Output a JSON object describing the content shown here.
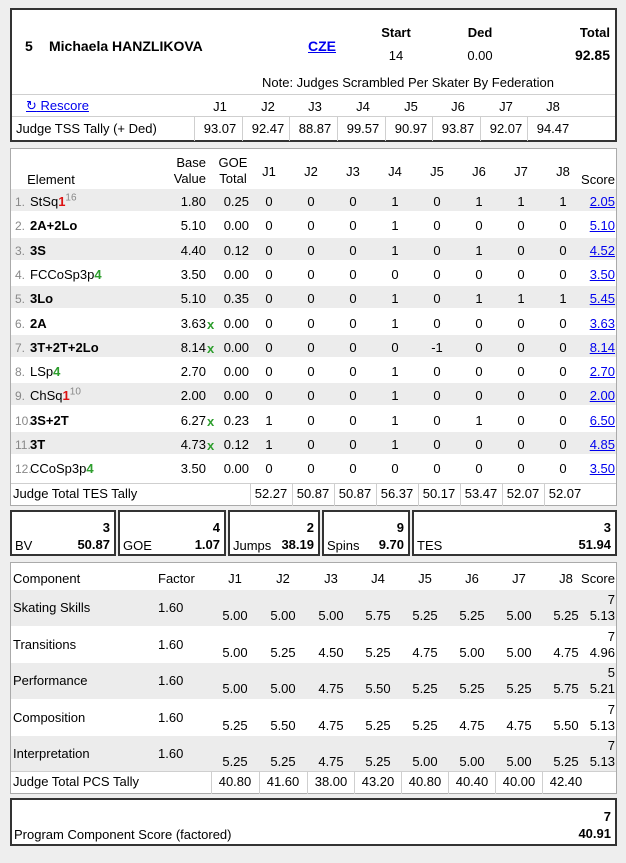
{
  "header": {
    "rank": "5",
    "skater_name": "Michaela HANZLIKOVA",
    "nation": "CZE",
    "start_label": "Start",
    "start_value": "14",
    "ded_label": "Ded",
    "ded_value": "0.00",
    "total_label": "Total",
    "total_value": "92.85",
    "note": "Note: Judges Scrambled Per Skater By Federation",
    "rescore_label": "Rescore",
    "rescore_icon": "refresh-icon",
    "judges": [
      "J1",
      "J2",
      "J3",
      "J4",
      "J5",
      "J6",
      "J7",
      "J8"
    ],
    "tss_label": "Judge TSS Tally (+ Ded)",
    "tss_values": [
      "93.07",
      "92.47",
      "88.87",
      "99.57",
      "90.97",
      "93.87",
      "92.07",
      "94.47"
    ]
  },
  "elements": {
    "headers": {
      "element": "Element",
      "base_value_1": "Base",
      "base_value_2": "Value",
      "goe_total_1": "GOE",
      "goe_total_2": "Total",
      "judges": [
        "J1",
        "J2",
        "J3",
        "J4",
        "J5",
        "J6",
        "J7",
        "J8"
      ],
      "score": "Score"
    },
    "rows": [
      {
        "num": "1.",
        "name": "StSq",
        "level": "1",
        "sup": "16",
        "bold": false,
        "base": "1.80",
        "x": "",
        "goe": "0.25",
        "judges": [
          "0",
          "0",
          "0",
          "1",
          "0",
          "1",
          "1",
          "1"
        ],
        "score": "2.05"
      },
      {
        "num": "2.",
        "name": "2A+2Lo",
        "level": "",
        "sup": "",
        "bold": true,
        "base": "5.10",
        "x": "",
        "goe": "0.00",
        "judges": [
          "0",
          "0",
          "0",
          "1",
          "0",
          "0",
          "0",
          "0"
        ],
        "score": "5.10"
      },
      {
        "num": "3.",
        "name": "3S",
        "level": "",
        "sup": "",
        "bold": true,
        "base": "4.40",
        "x": "",
        "goe": "0.12",
        "judges": [
          "0",
          "0",
          "0",
          "1",
          "0",
          "1",
          "0",
          "0"
        ],
        "score": "4.52"
      },
      {
        "num": "4.",
        "name": "FCCoSp3p",
        "level": "4",
        "sup": "",
        "bold": false,
        "base": "3.50",
        "x": "",
        "goe": "0.00",
        "judges": [
          "0",
          "0",
          "0",
          "0",
          "0",
          "0",
          "0",
          "0"
        ],
        "score": "3.50"
      },
      {
        "num": "5.",
        "name": "3Lo",
        "level": "",
        "sup": "",
        "bold": true,
        "base": "5.10",
        "x": "",
        "goe": "0.35",
        "judges": [
          "0",
          "0",
          "0",
          "1",
          "0",
          "1",
          "1",
          "1"
        ],
        "score": "5.45"
      },
      {
        "num": "6.",
        "name": "2A",
        "level": "",
        "sup": "",
        "bold": true,
        "base": "3.63",
        "x": "x",
        "goe": "0.00",
        "judges": [
          "0",
          "0",
          "0",
          "1",
          "0",
          "0",
          "0",
          "0"
        ],
        "score": "3.63"
      },
      {
        "num": "7.",
        "name": "3T+2T+2Lo",
        "level": "",
        "sup": "",
        "bold": true,
        "base": "8.14",
        "x": "x",
        "goe": "0.00",
        "judges": [
          "0",
          "0",
          "0",
          "0",
          "-1",
          "0",
          "0",
          "0"
        ],
        "score": "8.14"
      },
      {
        "num": "8.",
        "name": "LSp",
        "level": "4",
        "sup": "",
        "bold": false,
        "base": "2.70",
        "x": "",
        "goe": "0.00",
        "judges": [
          "0",
          "0",
          "0",
          "1",
          "0",
          "0",
          "0",
          "0"
        ],
        "score": "2.70"
      },
      {
        "num": "9.",
        "name": "ChSq",
        "level": "1",
        "sup": "10",
        "bold": false,
        "base": "2.00",
        "x": "",
        "goe": "0.00",
        "judges": [
          "0",
          "0",
          "0",
          "1",
          "0",
          "0",
          "0",
          "0"
        ],
        "score": "2.00"
      },
      {
        "num": "10.",
        "name": "3S+2T",
        "level": "",
        "sup": "",
        "bold": true,
        "base": "6.27",
        "x": "x",
        "goe": "0.23",
        "judges": [
          "1",
          "0",
          "0",
          "1",
          "0",
          "1",
          "0",
          "0"
        ],
        "score": "6.50"
      },
      {
        "num": "11.",
        "name": "3T",
        "level": "",
        "sup": "",
        "bold": true,
        "base": "4.73",
        "x": "x",
        "goe": "0.12",
        "judges": [
          "1",
          "0",
          "0",
          "1",
          "0",
          "0",
          "0",
          "0"
        ],
        "score": "4.85"
      },
      {
        "num": "12.",
        "name": "CCoSp3p",
        "level": "4",
        "sup": "",
        "bold": false,
        "base": "3.50",
        "x": "",
        "goe": "0.00",
        "judges": [
          "0",
          "0",
          "0",
          "0",
          "0",
          "0",
          "0",
          "0"
        ],
        "score": "3.50"
      }
    ],
    "tes_tally_label": "Judge Total TES Tally",
    "tes_tally_values": [
      "52.27",
      "50.87",
      "50.87",
      "56.37",
      "50.17",
      "53.47",
      "52.07",
      "52.07"
    ]
  },
  "summary": {
    "bv": {
      "label": "BV",
      "rank": "3",
      "value": "50.87"
    },
    "goe": {
      "label": "GOE",
      "rank": "4",
      "value": "1.07"
    },
    "jumps": {
      "label": "Jumps",
      "rank": "2",
      "value": "38.19"
    },
    "spins": {
      "label": "Spins",
      "rank": "9",
      "value": "9.70"
    },
    "tes": {
      "label": "TES",
      "rank": "3",
      "value": "51.94"
    }
  },
  "components": {
    "headers": {
      "component": "Component",
      "factor": "Factor",
      "judges": [
        "J1",
        "J2",
        "J3",
        "J4",
        "J5",
        "J6",
        "J7",
        "J8"
      ],
      "score": "Score"
    },
    "rows": [
      {
        "name": "Skating Skills",
        "factor": "1.60",
        "judges": [
          "5.00",
          "5.00",
          "5.00",
          "5.75",
          "5.25",
          "5.25",
          "5.00",
          "5.25"
        ],
        "rank": "7",
        "score": "5.13"
      },
      {
        "name": "Transitions",
        "factor": "1.60",
        "judges": [
          "5.00",
          "5.25",
          "4.50",
          "5.25",
          "4.75",
          "5.00",
          "5.00",
          "4.75"
        ],
        "rank": "7",
        "score": "4.96"
      },
      {
        "name": "Performance",
        "factor": "1.60",
        "judges": [
          "5.00",
          "5.00",
          "4.75",
          "5.50",
          "5.25",
          "5.25",
          "5.25",
          "5.75"
        ],
        "rank": "5",
        "score": "5.21"
      },
      {
        "name": "Composition",
        "factor": "1.60",
        "judges": [
          "5.25",
          "5.50",
          "4.75",
          "5.25",
          "5.25",
          "4.75",
          "4.75",
          "5.50"
        ],
        "rank": "7",
        "score": "5.13"
      },
      {
        "name": "Interpretation",
        "factor": "1.60",
        "judges": [
          "5.25",
          "5.25",
          "4.75",
          "5.25",
          "5.00",
          "5.00",
          "5.00",
          "5.25"
        ],
        "rank": "7",
        "score": "5.13"
      }
    ],
    "pcs_tally_label": "Judge Total PCS Tally",
    "pcs_tally_values": [
      "40.80",
      "41.60",
      "38.00",
      "43.20",
      "40.80",
      "40.40",
      "40.00",
      "42.40"
    ]
  },
  "pcs_total": {
    "label": "Program Component Score (factored)",
    "rank": "7",
    "value": "40.91"
  },
  "colors": {
    "link": "#0000ee",
    "level_green": "#2e9e2e",
    "level_red": "#dd1111",
    "row_shade": "#ececec",
    "frame_dark": "#333333"
  }
}
